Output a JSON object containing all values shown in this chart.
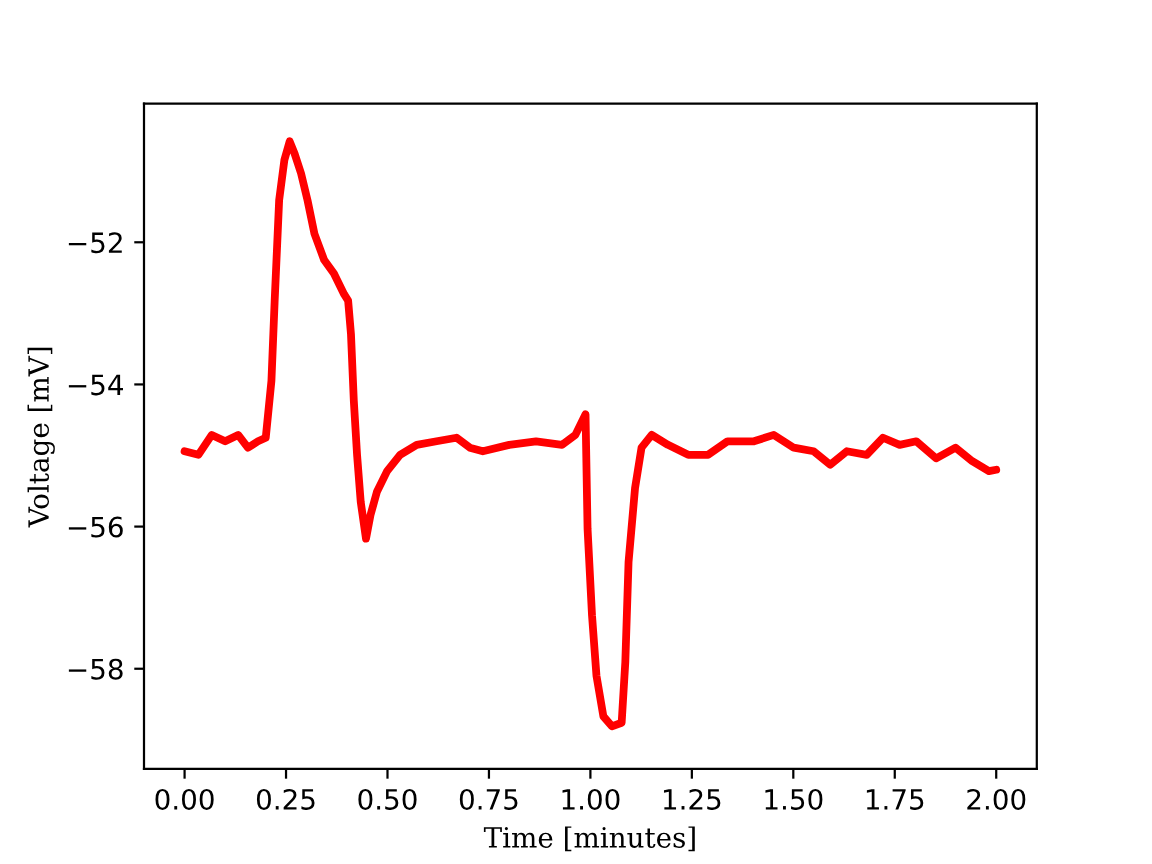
{
  "chart_data": {
    "type": "line",
    "xlabel": "Time [minutes]",
    "ylabel": "Voltage [mV]",
    "series": [
      {
        "color": "#ff0000",
        "x": [
          0.0,
          0.034,
          0.067,
          0.1,
          0.132,
          0.156,
          0.181,
          0.2,
          0.214,
          0.222,
          0.233,
          0.246,
          0.259,
          0.271,
          0.287,
          0.303,
          0.32,
          0.344,
          0.368,
          0.393,
          0.403,
          0.41,
          0.417,
          0.425,
          0.434,
          0.447,
          0.458,
          0.474,
          0.499,
          0.531,
          0.572,
          0.621,
          0.67,
          0.703,
          0.735,
          0.8,
          0.866,
          0.93,
          0.963,
          0.988,
          0.993,
          1.004,
          1.015,
          1.032,
          1.053,
          1.077,
          1.086,
          1.094,
          1.11,
          1.126,
          1.151,
          1.191,
          1.241,
          1.29,
          1.338,
          1.403,
          1.452,
          1.501,
          1.55,
          1.591,
          1.632,
          1.681,
          1.721,
          1.762,
          1.803,
          1.852,
          1.9,
          1.941,
          1.982,
          2.0
        ],
        "values": [
          -54.94,
          -54.99,
          -54.71,
          -54.8,
          -54.71,
          -54.89,
          -54.8,
          -54.75,
          -53.95,
          -52.82,
          -51.41,
          -50.84,
          -50.58,
          -50.75,
          -51.03,
          -51.41,
          -51.88,
          -52.25,
          -52.44,
          -52.73,
          -52.82,
          -53.29,
          -54.23,
          -54.99,
          -55.65,
          -56.17,
          -55.84,
          -55.51,
          -55.22,
          -54.99,
          -54.85,
          -54.8,
          -54.75,
          -54.89,
          -54.94,
          -54.85,
          -54.8,
          -54.85,
          -54.71,
          -54.42,
          -56.03,
          -57.25,
          -58.1,
          -58.67,
          -58.81,
          -58.76,
          -57.91,
          -56.5,
          -55.46,
          -54.89,
          -54.71,
          -54.85,
          -54.99,
          -54.99,
          -54.8,
          -54.8,
          -54.71,
          -54.89,
          -54.94,
          -55.13,
          -54.94,
          -54.99,
          -54.75,
          -54.85,
          -54.8,
          -55.04,
          -54.89,
          -55.08,
          -55.22,
          -55.2
        ]
      }
    ],
    "xlim": [
      -0.1,
      2.1
    ],
    "ylim": [
      -59.41,
      -50.05
    ],
    "xticks": [
      {
        "value": 0,
        "label": "0.00"
      },
      {
        "value": 0.25,
        "label": "0.25"
      },
      {
        "value": 0.5,
        "label": "0.50"
      },
      {
        "value": 0.75,
        "label": "0.75"
      },
      {
        "value": 1,
        "label": "1.00"
      },
      {
        "value": 1.25,
        "label": "1.25"
      },
      {
        "value": 1.5,
        "label": "1.50"
      },
      {
        "value": 1.75,
        "label": "1.75"
      },
      {
        "value": 2,
        "label": "2.00"
      }
    ],
    "yticks": [
      -58,
      -56,
      -54,
      -52
    ],
    "grid": false,
    "marker": "none",
    "line_style": "solid"
  }
}
